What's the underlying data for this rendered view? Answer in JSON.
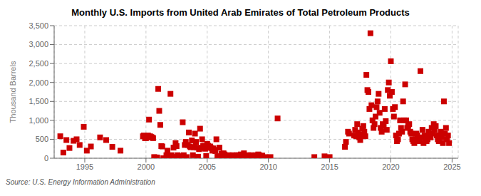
{
  "chart_data": {
    "type": "scatter",
    "title": "Monthly U.S. Imports from United Arab Emirates of Total Petroleum Products",
    "y_label": "Thousand Barrels",
    "annotations": [
      "Source: U.S. Energy Information Administration"
    ],
    "color": "#cc0000",
    "marker": "square",
    "grid": true,
    "xlim": [
      1992.5,
      2025.5
    ],
    "ylim": [
      0,
      3500
    ],
    "xticks": [
      1995,
      2000,
      2005,
      2010,
      2015,
      2020,
      2025
    ],
    "yticks": [
      0,
      500,
      {
        "value": 1000,
        "label": "1,000"
      },
      {
        "value": 1500,
        "label": "1,500"
      },
      {
        "value": 2000,
        "label": "2,000"
      },
      {
        "value": 2500,
        "label": "2,500"
      },
      {
        "value": 3000,
        "label": "3,000"
      },
      {
        "value": 3500,
        "label": "3,500"
      }
    ],
    "x": [
      1993.0,
      1993.25,
      1993.5,
      1993.75,
      1994.083,
      1994.333,
      1994.583,
      1994.917,
      1995.167,
      1995.5,
      1996.25,
      1996.75,
      1997.25,
      1997.917,
      1999.75,
      1999.833,
      1999.917,
      2000.0,
      2000.083,
      2000.167,
      2000.25,
      2000.333,
      2000.417,
      2000.5,
      2000.583,
      2000.667,
      2000.75,
      2000.833,
      2000.917,
      2001.0,
      2001.083,
      2001.167,
      2001.25,
      2001.333,
      2001.417,
      2001.5,
      2001.583,
      2001.667,
      2001.75,
      2001.833,
      2001.917,
      2002.0,
      2002.083,
      2002.167,
      2002.25,
      2002.333,
      2002.417,
      2002.5,
      2002.583,
      2002.667,
      2002.75,
      2002.833,
      2002.917,
      2003.0,
      2003.083,
      2003.167,
      2003.25,
      2003.333,
      2003.417,
      2003.5,
      2003.583,
      2003.667,
      2003.75,
      2003.833,
      2003.917,
      2004.0,
      2004.083,
      2004.167,
      2004.25,
      2004.333,
      2004.417,
      2004.5,
      2004.583,
      2004.667,
      2004.75,
      2004.833,
      2004.917,
      2005.0,
      2005.083,
      2005.167,
      2005.25,
      2005.333,
      2005.417,
      2005.5,
      2005.583,
      2005.667,
      2005.75,
      2005.833,
      2005.917,
      2006.0,
      2006.083,
      2006.167,
      2006.25,
      2006.333,
      2006.417,
      2006.5,
      2006.583,
      2006.667,
      2006.75,
      2006.833,
      2006.917,
      2007.0,
      2007.083,
      2007.167,
      2007.25,
      2007.333,
      2007.417,
      2007.5,
      2007.583,
      2007.667,
      2007.75,
      2007.833,
      2007.917,
      2008.0,
      2008.083,
      2008.167,
      2008.25,
      2008.333,
      2008.417,
      2008.5,
      2008.583,
      2008.75,
      2008.833,
      2008.917,
      2009.0,
      2009.083,
      2009.167,
      2009.25,
      2009.333,
      2009.5,
      2009.75,
      2010.167,
      2010.75,
      2013.75,
      2014.583,
      2015.0,
      2016.25,
      2016.333,
      2016.5,
      2016.583,
      2017.0,
      2017.083,
      2017.167,
      2017.25,
      2017.333,
      2017.417,
      2017.5,
      2017.583,
      2017.667,
      2017.75,
      2017.833,
      2017.917,
      2018.0,
      2018.083,
      2018.167,
      2018.25,
      2018.333,
      2018.417,
      2018.5,
      2018.583,
      2018.667,
      2018.75,
      2018.833,
      2018.917,
      2019.0,
      2019.083,
      2019.167,
      2019.25,
      2019.333,
      2019.417,
      2019.5,
      2019.583,
      2019.667,
      2019.75,
      2019.833,
      2019.917,
      2020.0,
      2020.083,
      2020.167,
      2020.25,
      2020.333,
      2020.417,
      2020.5,
      2020.583,
      2020.667,
      2020.75,
      2020.833,
      2020.917,
      2021.0,
      2021.083,
      2021.167,
      2021.25,
      2021.333,
      2021.417,
      2021.5,
      2021.583,
      2021.667,
      2021.75,
      2021.833,
      2021.917,
      2022.0,
      2022.083,
      2022.167,
      2022.25,
      2022.333,
      2022.417,
      2022.5,
      2022.583,
      2022.667,
      2022.75,
      2022.833,
      2022.917,
      2023.0,
      2023.083,
      2023.167,
      2023.25,
      2023.333,
      2023.417,
      2023.5,
      2023.583,
      2023.667,
      2023.75,
      2023.833,
      2023.917,
      2024.0,
      2024.083,
      2024.167,
      2024.25,
      2024.333,
      2024.417,
      2024.5,
      2024.583,
      2024.667,
      2024.75
    ],
    "values": [
      580,
      150,
      480,
      270,
      460,
      500,
      350,
      830,
      200,
      310,
      550,
      480,
      300,
      200,
      580,
      600,
      530,
      530,
      550,
      600,
      1020,
      580,
      560,
      550,
      530,
      30,
      20,
      20,
      20,
      1830,
      1250,
      880,
      320,
      310,
      0,
      0,
      0,
      80,
      200,
      0,
      0,
      1700,
      80,
      30,
      280,
      30,
      400,
      320,
      80,
      30,
      50,
      30,
      50,
      950,
      80,
      350,
      430,
      30,
      350,
      680,
      310,
      290,
      470,
      80,
      290,
      650,
      430,
      280,
      40,
      240,
      780,
      270,
      500,
      320,
      330,
      250,
      60,
      380,
      330,
      280,
      310,
      270,
      200,
      260,
      220,
      190,
      500,
      40,
      50,
      280,
      50,
      120,
      30,
      130,
      100,
      30,
      30,
      30,
      80,
      30,
      30,
      30,
      80,
      30,
      70,
      30,
      80,
      30,
      80,
      30,
      100,
      30,
      80,
      130,
      30,
      30,
      30,
      80,
      30,
      30,
      80,
      30,
      30,
      30,
      80,
      30,
      100,
      80,
      30,
      70,
      30,
      30,
      1050,
      30,
      50,
      30,
      300,
      430,
      700,
      650,
      600,
      750,
      580,
      900,
      680,
      550,
      480,
      620,
      780,
      850,
      700,
      580,
      2200,
      1800,
      1750,
      1300,
      3300,
      1400,
      1000,
      800,
      900,
      1100,
      1350,
      1500,
      1700,
      1200,
      800,
      700,
      900,
      850,
      1300,
      980,
      750,
      1800,
      2000,
      1650,
      2560,
      1750,
      1300,
      1100,
      1350,
      600,
      450,
      500,
      650,
      1000,
      800,
      700,
      1500,
      1000,
      1950,
      1000,
      800,
      850,
      900,
      700,
      650,
      500,
      450,
      400,
      500,
      650,
      600,
      450,
      500,
      2300,
      550,
      750,
      400,
      600,
      500,
      450,
      500,
      700,
      600,
      550,
      800,
      650,
      900,
      750,
      850,
      600,
      500,
      450,
      600,
      700,
      550,
      400,
      1500,
      650,
      800,
      500,
      600,
      400
    ]
  }
}
